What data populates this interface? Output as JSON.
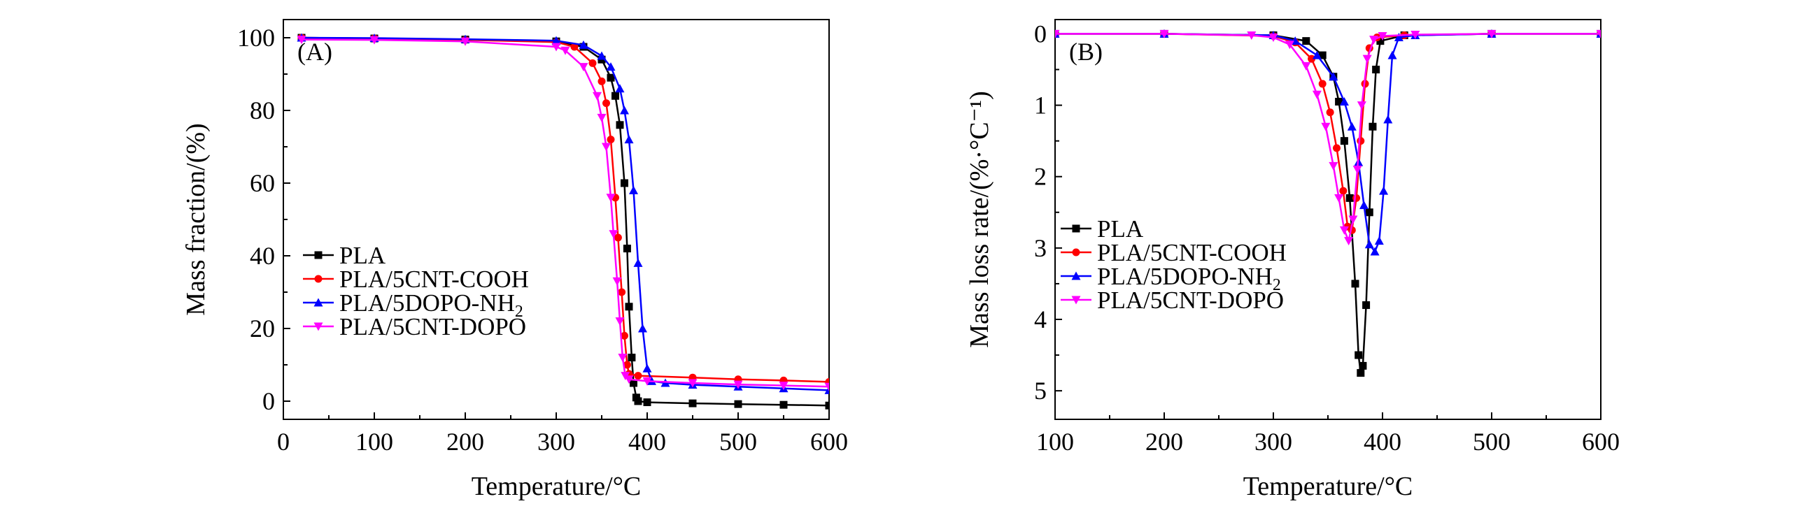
{
  "colors": {
    "PLA": "#000000",
    "PLA/5CNT-COOH": "#ff0000",
    "PLA/5DOPO-NH2": "#0000ff",
    "PLA/5CNT-DOPO": "#ff00ff"
  },
  "chart_data": [
    {
      "panel": "(A)",
      "type": "line",
      "xlabel": "Temperature/°C",
      "ylabel": "Mass fraction/(%)",
      "xlim": [
        0,
        600
      ],
      "ylim": [
        -5,
        105
      ],
      "xticks": [
        0,
        100,
        200,
        300,
        400,
        500,
        600
      ],
      "yticks": [
        0,
        20,
        40,
        60,
        80,
        100
      ],
      "legend_position": "lower-left",
      "series": [
        {
          "name": "PLA",
          "marker": "square",
          "color": "#000000",
          "x": [
            20,
            100,
            200,
            300,
            330,
            350,
            360,
            365,
            370,
            375,
            378,
            380,
            383,
            385,
            388,
            390,
            400,
            450,
            500,
            550,
            600
          ],
          "y": [
            100,
            99.8,
            99.5,
            99,
            97.5,
            94,
            89,
            84,
            76,
            60,
            42,
            26,
            12,
            5,
            1,
            0,
            -0.3,
            -0.6,
            -0.8,
            -1,
            -1.2
          ]
        },
        {
          "name": "PLA/5CNT-COOH",
          "marker": "circle",
          "color": "#ff0000",
          "x": [
            20,
            100,
            200,
            300,
            320,
            340,
            350,
            355,
            360,
            365,
            368,
            372,
            375,
            378,
            380,
            390,
            450,
            500,
            550,
            600
          ],
          "y": [
            100,
            99.8,
            99.4,
            98.8,
            97.5,
            93,
            88,
            82,
            72,
            56,
            45,
            30,
            18,
            10,
            7.5,
            7,
            6.5,
            6,
            5.7,
            5.3
          ]
        },
        {
          "name": "PLA/5DOPO-NH2",
          "marker": "triangle-up",
          "color": "#0000ff",
          "x": [
            20,
            100,
            200,
            300,
            330,
            350,
            360,
            370,
            375,
            380,
            385,
            390,
            395,
            400,
            405,
            420,
            450,
            500,
            550,
            600
          ],
          "y": [
            100,
            99.9,
            99.6,
            99.2,
            98,
            95,
            92,
            86,
            80,
            72,
            58,
            38,
            20,
            9,
            5.5,
            5,
            4.5,
            4,
            3.5,
            3
          ]
        },
        {
          "name": "PLA/5CNT-DOPO",
          "marker": "triangle-down",
          "color": "#ff00ff",
          "x": [
            20,
            100,
            200,
            300,
            310,
            330,
            345,
            350,
            355,
            360,
            363,
            367,
            370,
            373,
            376,
            380,
            400,
            450,
            500,
            550,
            600
          ],
          "y": [
            99.5,
            99.4,
            99,
            97.5,
            96.5,
            92,
            84,
            78,
            70,
            56,
            46,
            33,
            22,
            12,
            7,
            6,
            5.5,
            5,
            4.6,
            4.3,
            4
          ]
        }
      ]
    },
    {
      "panel": "(B)",
      "type": "line",
      "xlabel": "Temperature/°C",
      "ylabel": "Mass loss rate/(%·°C⁻¹)",
      "xlim": [
        100,
        600
      ],
      "ylim": [
        -0.2,
        5.4
      ],
      "y_inverted": true,
      "xticks": [
        100,
        200,
        300,
        400,
        500,
        600
      ],
      "yticks": [
        0,
        1,
        2,
        3,
        4,
        5
      ],
      "legend_position": "lower-left",
      "series": [
        {
          "name": "PLA",
          "marker": "square",
          "color": "#000000",
          "x": [
            100,
            200,
            300,
            330,
            345,
            355,
            360,
            365,
            370,
            375,
            378,
            380,
            382,
            385,
            388,
            391,
            394,
            398,
            420,
            500,
            600
          ],
          "y": [
            0,
            0,
            0.02,
            0.1,
            0.3,
            0.6,
            0.95,
            1.5,
            2.3,
            3.5,
            4.5,
            4.75,
            4.65,
            3.8,
            2.5,
            1.3,
            0.5,
            0.1,
            0.02,
            0,
            0
          ]
        },
        {
          "name": "PLA/5CNT-COOH",
          "marker": "circle",
          "color": "#ff0000",
          "x": [
            100,
            200,
            300,
            320,
            335,
            345,
            352,
            358,
            364,
            368,
            372,
            376,
            380,
            384,
            388,
            395,
            420,
            500,
            600
          ],
          "y": [
            0,
            0,
            0.03,
            0.12,
            0.35,
            0.7,
            1.1,
            1.6,
            2.2,
            2.7,
            2.75,
            2.3,
            1.5,
            0.7,
            0.2,
            0.05,
            0.02,
            0,
            0
          ]
        },
        {
          "name": "PLA/5DOPO-NH2",
          "marker": "triangle-up",
          "color": "#0000ff",
          "x": [
            100,
            200,
            300,
            320,
            340,
            355,
            365,
            372,
            378,
            383,
            388,
            393,
            397,
            401,
            405,
            409,
            415,
            430,
            500,
            600
          ],
          "y": [
            0,
            0,
            0.02,
            0.1,
            0.3,
            0.6,
            0.95,
            1.3,
            1.8,
            2.4,
            2.95,
            3.05,
            2.9,
            2.2,
            1.2,
            0.3,
            0.05,
            0.02,
            0,
            0
          ]
        },
        {
          "name": "PLA/5CNT-DOPO",
          "marker": "triangle-down",
          "color": "#ff00ff",
          "x": [
            100,
            200,
            280,
            300,
            315,
            330,
            340,
            348,
            355,
            360,
            365,
            369,
            373,
            377,
            381,
            386,
            392,
            400,
            430,
            500,
            600
          ],
          "y": [
            0,
            0,
            0.02,
            0.05,
            0.15,
            0.45,
            0.85,
            1.3,
            1.85,
            2.3,
            2.75,
            2.9,
            2.6,
            1.9,
            1.0,
            0.35,
            0.08,
            0.03,
            0.01,
            0,
            0
          ]
        }
      ]
    }
  ]
}
